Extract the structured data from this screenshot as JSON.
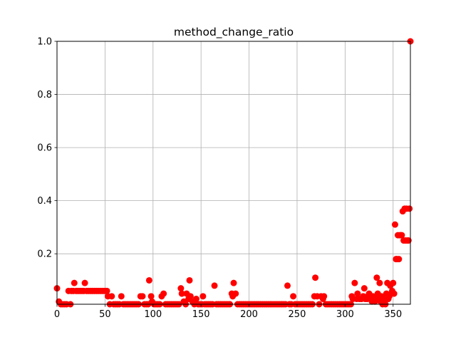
{
  "chart_data": {
    "type": "scatter",
    "title": "method_change_ratio",
    "xlabel": "",
    "ylabel": "",
    "xlim": [
      0,
      368
    ],
    "ylim": [
      0.01,
      1.0
    ],
    "xticks": [
      0,
      50,
      100,
      150,
      200,
      250,
      300,
      350
    ],
    "yticks": [
      0.2,
      0.4,
      0.6,
      0.8,
      1.0
    ],
    "ytick_labels": [
      "0.2",
      "0.4",
      "0.6",
      "0.8",
      "1.0"
    ],
    "grid": true,
    "marker_color": "#ff0000",
    "points": [
      [
        0,
        0.07
      ],
      [
        2,
        0.02
      ],
      [
        4,
        0.01
      ],
      [
        6,
        0.01
      ],
      [
        8,
        0.01
      ],
      [
        10,
        0.01
      ],
      [
        12,
        0.06
      ],
      [
        14,
        0.01
      ],
      [
        15,
        0.06
      ],
      [
        17,
        0.06
      ],
      [
        18,
        0.09
      ],
      [
        20,
        0.06
      ],
      [
        22,
        0.06
      ],
      [
        24,
        0.06
      ],
      [
        26,
        0.06
      ],
      [
        28,
        0.06
      ],
      [
        29,
        0.09
      ],
      [
        31,
        0.06
      ],
      [
        33,
        0.06
      ],
      [
        35,
        0.06
      ],
      [
        37,
        0.06
      ],
      [
        39,
        0.06
      ],
      [
        41,
        0.06
      ],
      [
        43,
        0.06
      ],
      [
        45,
        0.06
      ],
      [
        47,
        0.06
      ],
      [
        49,
        0.06
      ],
      [
        51,
        0.06
      ],
      [
        52,
        0.06
      ],
      [
        53,
        0.04
      ],
      [
        55,
        0.01
      ],
      [
        57,
        0.04
      ],
      [
        59,
        0.01
      ],
      [
        61,
        0.01
      ],
      [
        63,
        0.01
      ],
      [
        65,
        0.01
      ],
      [
        67,
        0.04
      ],
      [
        69,
        0.01
      ],
      [
        71,
        0.01
      ],
      [
        73,
        0.01
      ],
      [
        75,
        0.01
      ],
      [
        77,
        0.01
      ],
      [
        79,
        0.01
      ],
      [
        81,
        0.01
      ],
      [
        83,
        0.01
      ],
      [
        85,
        0.01
      ],
      [
        87,
        0.04
      ],
      [
        89,
        0.04
      ],
      [
        91,
        0.01
      ],
      [
        93,
        0.01
      ],
      [
        95,
        0.01
      ],
      [
        96,
        0.1
      ],
      [
        98,
        0.04
      ],
      [
        99,
        0.02
      ],
      [
        101,
        0.01
      ],
      [
        103,
        0.01
      ],
      [
        105,
        0.01
      ],
      [
        107,
        0.01
      ],
      [
        109,
        0.04
      ],
      [
        111,
        0.05
      ],
      [
        113,
        0.01
      ],
      [
        115,
        0.01
      ],
      [
        117,
        0.01
      ],
      [
        119,
        0.01
      ],
      [
        121,
        0.01
      ],
      [
        123,
        0.01
      ],
      [
        125,
        0.01
      ],
      [
        127,
        0.01
      ],
      [
        129,
        0.07
      ],
      [
        130,
        0.05
      ],
      [
        132,
        0.02
      ],
      [
        134,
        0.01
      ],
      [
        135,
        0.05
      ],
      [
        137,
        0.03
      ],
      [
        138,
        0.1
      ],
      [
        139,
        0.04
      ],
      [
        141,
        0.02
      ],
      [
        143,
        0.01
      ],
      [
        145,
        0.03
      ],
      [
        147,
        0.01
      ],
      [
        149,
        0.01
      ],
      [
        151,
        0.01
      ],
      [
        152,
        0.04
      ],
      [
        154,
        0.01
      ],
      [
        156,
        0.01
      ],
      [
        158,
        0.01
      ],
      [
        160,
        0.01
      ],
      [
        162,
        0.01
      ],
      [
        164,
        0.08
      ],
      [
        166,
        0.01
      ],
      [
        168,
        0.01
      ],
      [
        170,
        0.01
      ],
      [
        172,
        0.01
      ],
      [
        174,
        0.01
      ],
      [
        176,
        0.01
      ],
      [
        178,
        0.01
      ],
      [
        180,
        0.01
      ],
      [
        182,
        0.05
      ],
      [
        183,
        0.04
      ],
      [
        184,
        0.09
      ],
      [
        186,
        0.05
      ],
      [
        188,
        0.01
      ],
      [
        190,
        0.01
      ],
      [
        192,
        0.01
      ],
      [
        194,
        0.01
      ],
      [
        196,
        0.01
      ],
      [
        198,
        0.01
      ],
      [
        200,
        0.01
      ],
      [
        202,
        0.01
      ],
      [
        204,
        0.01
      ],
      [
        206,
        0.01
      ],
      [
        208,
        0.01
      ],
      [
        210,
        0.01
      ],
      [
        212,
        0.01
      ],
      [
        214,
        0.01
      ],
      [
        216,
        0.01
      ],
      [
        218,
        0.01
      ],
      [
        220,
        0.01
      ],
      [
        222,
        0.01
      ],
      [
        224,
        0.01
      ],
      [
        226,
        0.01
      ],
      [
        228,
        0.01
      ],
      [
        230,
        0.01
      ],
      [
        232,
        0.01
      ],
      [
        234,
        0.01
      ],
      [
        236,
        0.01
      ],
      [
        238,
        0.01
      ],
      [
        240,
        0.08
      ],
      [
        242,
        0.01
      ],
      [
        244,
        0.01
      ],
      [
        246,
        0.04
      ],
      [
        248,
        0.01
      ],
      [
        250,
        0.01
      ],
      [
        252,
        0.01
      ],
      [
        254,
        0.01
      ],
      [
        256,
        0.01
      ],
      [
        258,
        0.01
      ],
      [
        260,
        0.01
      ],
      [
        262,
        0.01
      ],
      [
        264,
        0.01
      ],
      [
        266,
        0.01
      ],
      [
        268,
        0.04
      ],
      [
        269,
        0.11
      ],
      [
        271,
        0.04
      ],
      [
        273,
        0.01
      ],
      [
        275,
        0.04
      ],
      [
        277,
        0.03
      ],
      [
        278,
        0.04
      ],
      [
        280,
        0.01
      ],
      [
        282,
        0.01
      ],
      [
        284,
        0.01
      ],
      [
        286,
        0.01
      ],
      [
        288,
        0.01
      ],
      [
        290,
        0.01
      ],
      [
        292,
        0.01
      ],
      [
        294,
        0.01
      ],
      [
        296,
        0.01
      ],
      [
        298,
        0.01
      ],
      [
        300,
        0.01
      ],
      [
        302,
        0.01
      ],
      [
        304,
        0.01
      ],
      [
        306,
        0.01
      ],
      [
        307,
        0.04
      ],
      [
        308,
        0.03
      ],
      [
        310,
        0.09
      ],
      [
        312,
        0.03
      ],
      [
        313,
        0.05
      ],
      [
        315,
        0.03
      ],
      [
        317,
        0.03
      ],
      [
        319,
        0.04
      ],
      [
        320,
        0.07
      ],
      [
        321,
        0.03
      ],
      [
        323,
        0.03
      ],
      [
        324,
        0.04
      ],
      [
        325,
        0.05
      ],
      [
        327,
        0.04
      ],
      [
        328,
        0.02
      ],
      [
        329,
        0.04
      ],
      [
        331,
        0.02
      ],
      [
        332,
        0.03
      ],
      [
        333,
        0.11
      ],
      [
        334,
        0.05
      ],
      [
        335,
        0.03
      ],
      [
        336,
        0.09
      ],
      [
        337,
        0.02
      ],
      [
        338,
        0.04
      ],
      [
        339,
        0.01
      ],
      [
        340,
        0.03
      ],
      [
        341,
        0.02
      ],
      [
        342,
        0.01
      ],
      [
        343,
        0.05
      ],
      [
        344,
        0.09
      ],
      [
        345,
        0.03
      ],
      [
        346,
        0.04
      ],
      [
        347,
        0.08
      ],
      [
        348,
        0.05
      ],
      [
        349,
        0.06
      ],
      [
        350,
        0.09
      ],
      [
        351,
        0.05
      ],
      [
        352,
        0.31
      ],
      [
        353,
        0.18
      ],
      [
        354,
        0.18
      ],
      [
        355,
        0.27
      ],
      [
        356,
        0.18
      ],
      [
        357,
        0.27
      ],
      [
        358,
        0.27
      ],
      [
        359,
        0.27
      ],
      [
        360,
        0.36
      ],
      [
        361,
        0.25
      ],
      [
        362,
        0.37
      ],
      [
        363,
        0.25
      ],
      [
        364,
        0.37
      ],
      [
        365,
        0.25
      ],
      [
        366,
        0.25
      ],
      [
        367,
        0.37
      ],
      [
        368,
        1.0
      ]
    ]
  }
}
